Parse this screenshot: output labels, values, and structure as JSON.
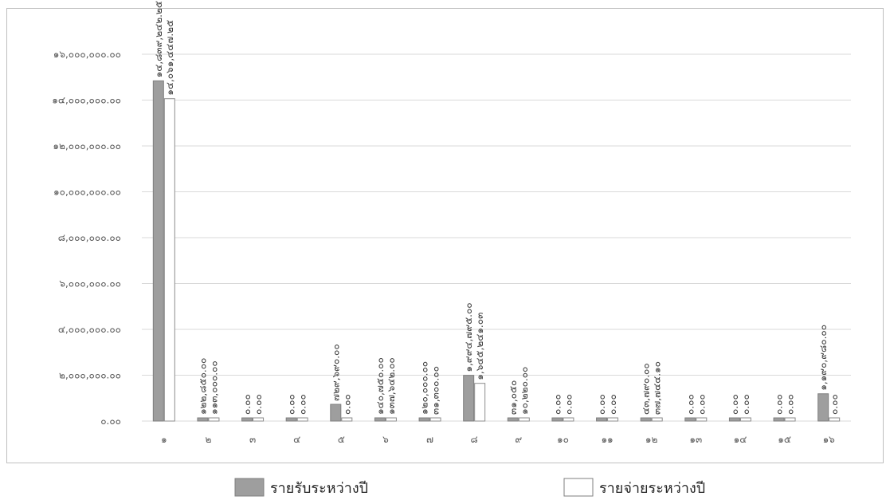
{
  "chart_data": {
    "type": "bar",
    "categories": [
      "๑",
      "๒",
      "๓",
      "๔",
      "๕",
      "๖",
      "๗",
      "๘",
      "๙",
      "๑๐",
      "๑๑",
      "๑๒",
      "๑๓",
      "๑๔",
      "๑๕",
      "๑๖"
    ],
    "y_ticks": [
      "๐.๐๐",
      "๒,๐๐๐,๐๐๐.๐๐",
      "๔,๐๐๐,๐๐๐.๐๐",
      "๖,๐๐๐,๐๐๐.๐๐",
      "๘,๐๐๐,๐๐๐.๐๐",
      "๑๐,๐๐๐,๐๐๐.๐๐",
      "๑๒,๐๐๐,๐๐๐.๐๐",
      "๑๔,๐๐๐,๐๐๐.๐๐",
      "๑๖,๐๐๐,๐๐๐.๐๐"
    ],
    "ylim": [
      0,
      16000000
    ],
    "grid": true,
    "legend_position": "bottom",
    "series": [
      {
        "name": "รายรับระหว่างปี",
        "color": "#9e9e9e",
        "values": [
          14839242.25,
          122850,
          0,
          0,
          729690,
          140750,
          120000,
          1994795,
          31050,
          0,
          0,
          43790,
          0,
          0,
          0,
          1190980
        ],
        "labels": [
          "๑๔,๘๓๙,๒๔๒.๒๕",
          "๑๒๒,๘๕๐.๐๐",
          "๐.๐๐",
          "๐.๐๐",
          "๗๒๙,๖๙๐.๐๐",
          "๑๔๐,๗๕๐.๐๐",
          "๑๒๐,๐๐๐.๐๐",
          "๑,๙๙๔,๗๙๕.๐๐",
          "๓๑,๐๕๐",
          "๐.๐๐",
          "๐.๐๐",
          "๔๓,๗๙๐.๐๐",
          "๐.๐๐",
          "๐.๐๐",
          "๐.๐๐",
          "๑,๑๙๐,๙๘๐.๐๐"
        ]
      },
      {
        "name": "รายจ่ายระหว่างปี",
        "color": "#ffffff",
        "values": [
          14061447.25,
          113000,
          0,
          0,
          0,
          137642,
          31300,
          1645241.03,
          10220,
          0,
          0,
          37744.1,
          0,
          0,
          0,
          0
        ],
        "labels": [
          "๑๔,๐๖๑,๔๔๗.๒๕",
          "๑๑๓,๐๐๐.๐๐",
          "๐.๐๐",
          "๐.๐๐",
          "๐.๐๐",
          "๑๓๗,๖๔๒.๐๐",
          "๓๑,๓๐๐.๐๐",
          "๑,๖๔๕,๒๔๑.๐๓",
          "๑๐,๒๒๐.๐๐",
          "๐.๐๐",
          "๐.๐๐",
          "๓๗,๗๔๔.๑๐",
          "๐.๐๐",
          "๐.๐๐",
          "๐.๐๐",
          "๐.๐๐"
        ]
      }
    ]
  }
}
